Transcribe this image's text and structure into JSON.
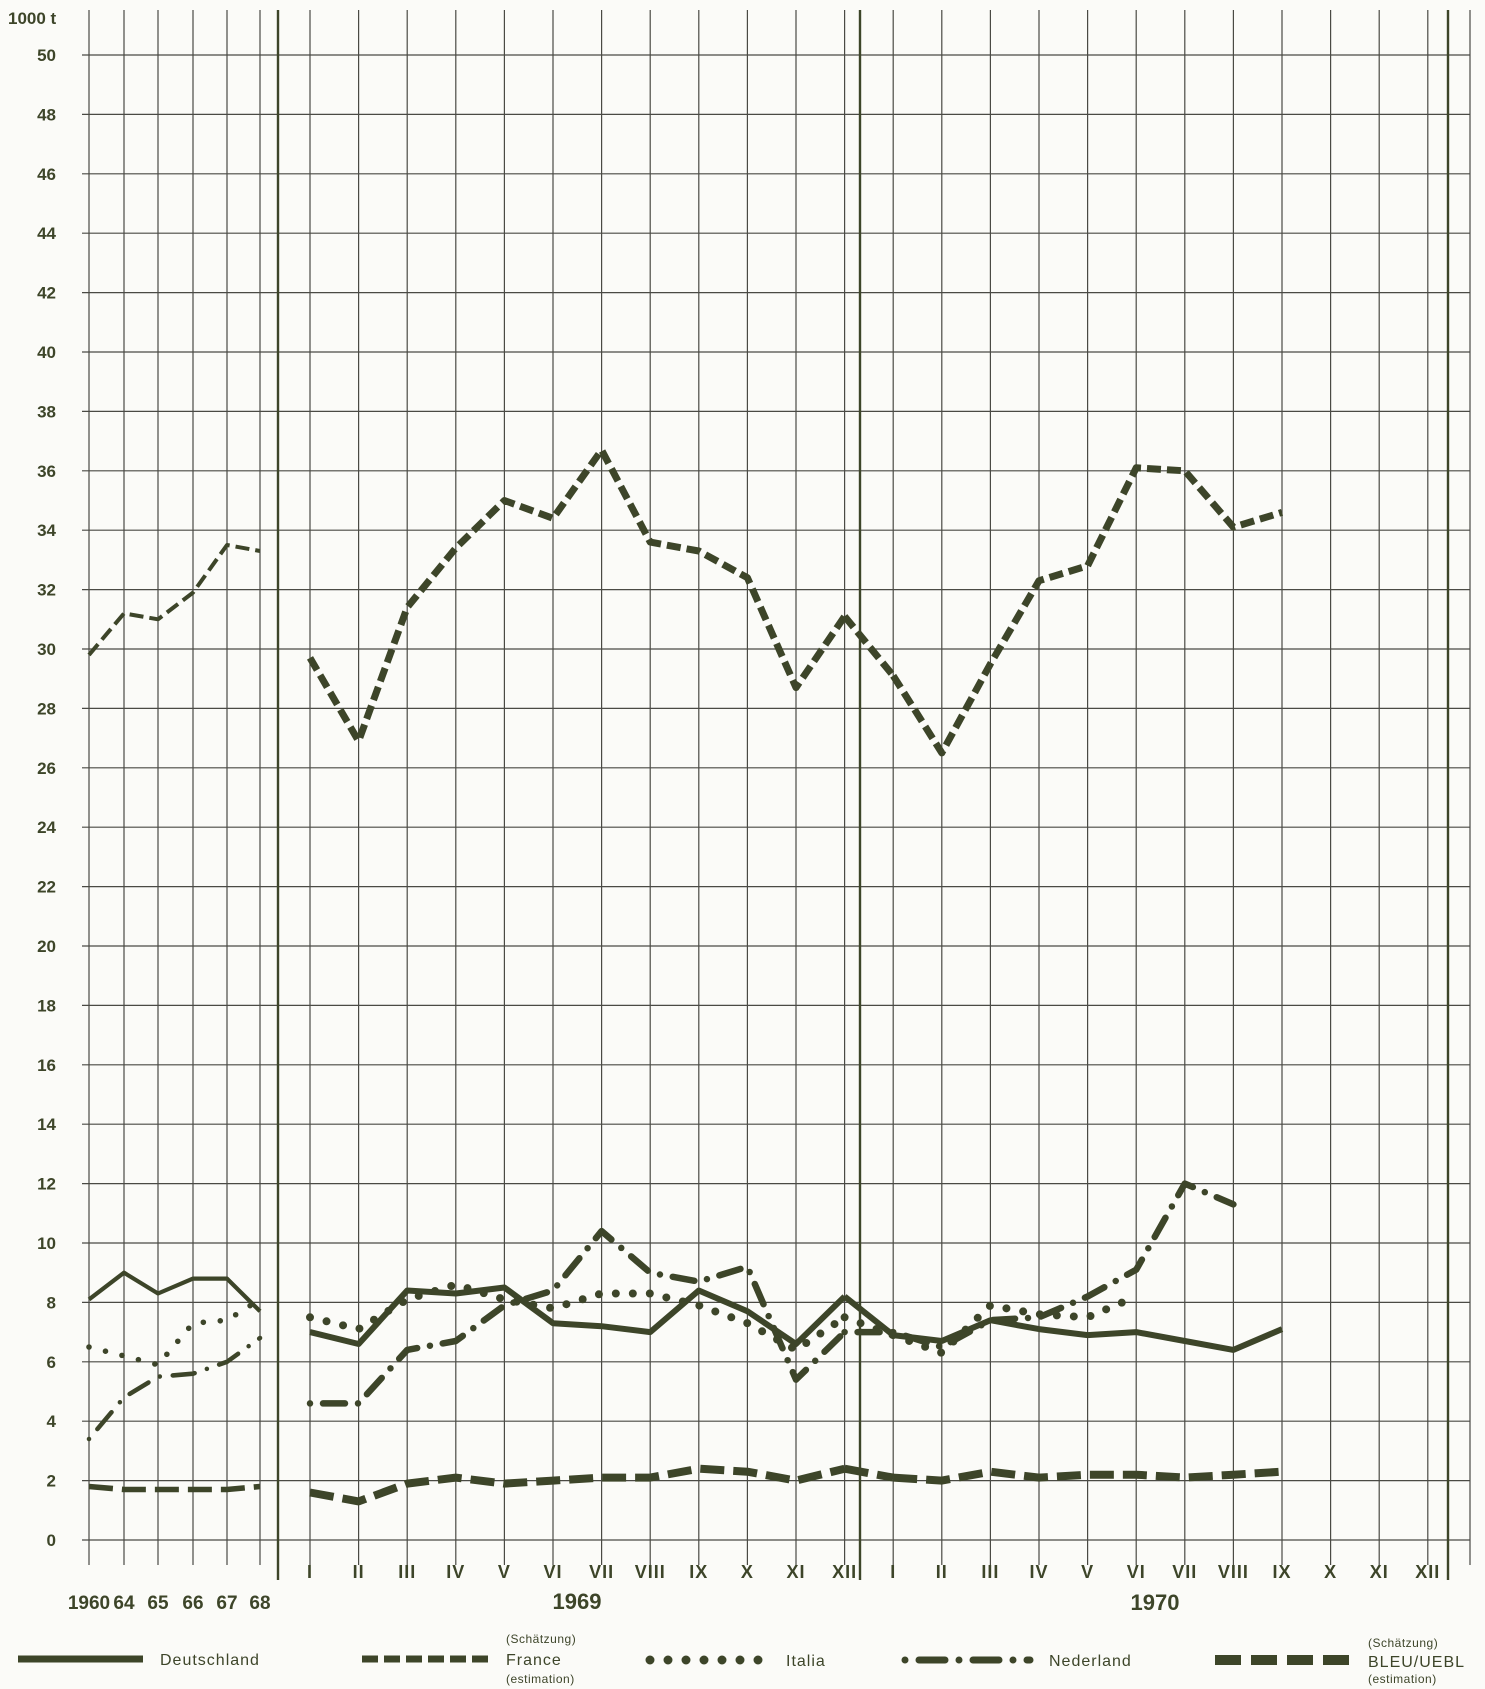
{
  "chart_data": {
    "type": "line",
    "y_unit_label": "1000 t",
    "ylim": [
      0,
      50
    ],
    "y_ticks": [
      0,
      2,
      4,
      6,
      8,
      10,
      12,
      14,
      16,
      18,
      20,
      22,
      24,
      26,
      28,
      30,
      32,
      34,
      36,
      38,
      40,
      42,
      44,
      46,
      48,
      50
    ],
    "grid": true,
    "annual_categories": [
      "1960",
      "64",
      "65",
      "66",
      "67",
      "68"
    ],
    "months": [
      "I",
      "II",
      "III",
      "IV",
      "V",
      "VI",
      "VII",
      "VIII",
      "IX",
      "X",
      "XI",
      "XII"
    ],
    "period_labels": [
      "1969",
      "1970"
    ],
    "legend_position": "bottom",
    "series": [
      {
        "name": "Deutschland",
        "style": "solid",
        "annual": [
          8.1,
          9.0,
          8.3,
          8.8,
          8.8,
          7.7
        ],
        "monthly_1969": [
          7.0,
          6.6,
          8.4,
          8.3,
          8.5,
          7.3,
          7.2,
          7.0,
          8.4,
          7.7,
          6.6,
          8.2
        ],
        "monthly_1970": [
          6.9,
          6.7,
          7.4,
          7.1,
          6.9,
          7.0,
          6.7,
          6.4,
          7.1
        ]
      },
      {
        "name": "France",
        "note_top": "(Schätzung)",
        "note_bottom": "(estimation)",
        "style": "dashed",
        "annual": [
          29.8,
          31.2,
          31.0,
          31.9,
          33.5,
          33.3
        ],
        "monthly_1969": [
          29.7,
          26.9,
          31.4,
          33.4,
          35.0,
          34.4,
          36.7,
          33.6,
          33.3,
          32.4,
          28.7,
          31.1
        ],
        "monthly_1970": [
          29.1,
          26.5,
          29.5,
          32.3,
          32.8,
          36.1,
          36.0,
          34.1,
          34.6
        ]
      },
      {
        "name": "Italia",
        "style": "dotted",
        "annual": [
          6.5,
          6.2,
          5.9,
          7.3,
          7.4,
          8.1
        ],
        "monthly_1969": [
          7.5,
          7.1,
          8.1,
          8.6,
          8.1,
          7.8,
          8.3,
          8.3,
          7.9,
          7.3,
          6.4,
          7.5
        ],
        "monthly_1970": [
          6.9,
          6.3,
          7.9,
          7.6,
          7.5,
          8.2
        ]
      },
      {
        "name": "Nederland",
        "style": "dash-dot",
        "annual": [
          3.4,
          4.8,
          5.5,
          5.6,
          6.0,
          6.8
        ],
        "monthly_1969": [
          4.6,
          4.6,
          6.4,
          6.7,
          7.9,
          8.4,
          10.4,
          9.0,
          8.7,
          9.2,
          5.4,
          7.0
        ],
        "monthly_1970": [
          7.0,
          6.5,
          7.4,
          7.5,
          8.2,
          9.1,
          12.0,
          11.3
        ]
      },
      {
        "name": "BLEU/UEBL",
        "note_top": "(Schätzung)",
        "note_bottom": "(estimation)",
        "style": "long-dash",
        "annual": [
          1.8,
          1.7,
          1.7,
          1.7,
          1.7,
          1.8
        ],
        "monthly_1969": [
          1.6,
          1.3,
          1.9,
          2.1,
          1.9,
          2.0,
          2.1,
          2.1,
          2.4,
          2.3,
          2.0,
          2.4
        ],
        "monthly_1970": [
          2.1,
          2.0,
          2.3,
          2.1,
          2.2,
          2.2,
          2.1,
          2.2,
          2.3
        ]
      }
    ]
  },
  "colors": {
    "ink": "#3d4529",
    "grid": "#4a4a44",
    "background": "#fbfbf8"
  }
}
